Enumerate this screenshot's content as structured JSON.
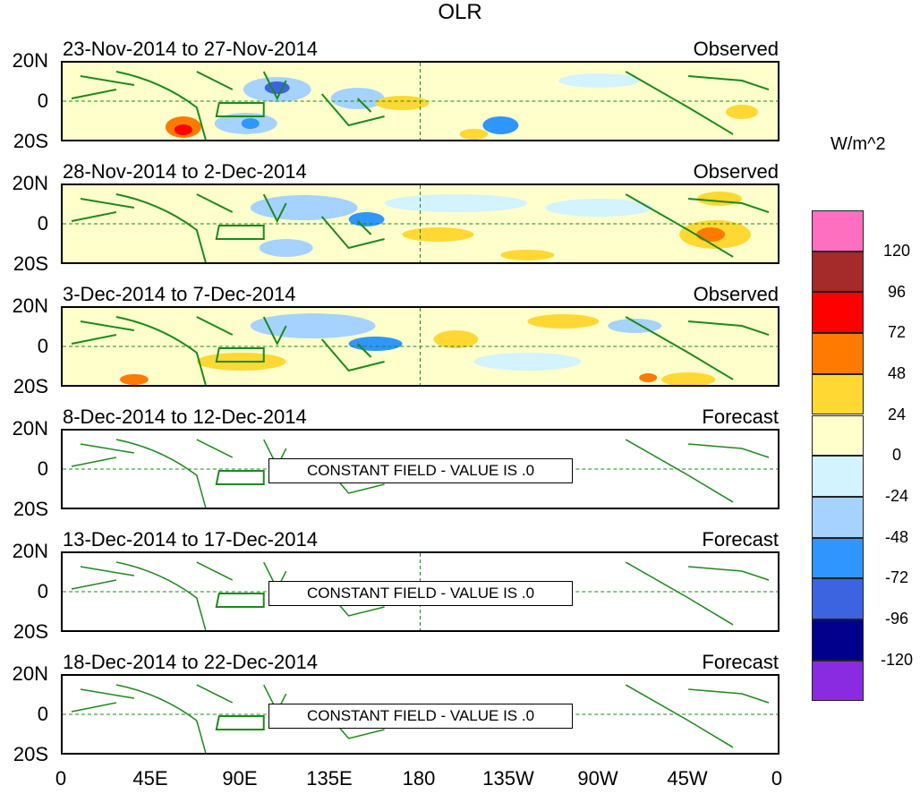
{
  "title": "OLR",
  "units": "W/m^2",
  "lat_labels": [
    "20N",
    "0",
    "20S"
  ],
  "lon_labels": [
    "0",
    "45E",
    "90E",
    "135E",
    "180",
    "135W",
    "90W",
    "45W",
    "0"
  ],
  "panels": [
    {
      "date": "23-Nov-2014 to 27-Nov-2014",
      "type": "Observed"
    },
    {
      "date": "28-Nov-2014 to 2-Dec-2014",
      "type": "Observed"
    },
    {
      "date": "3-Dec-2014 to 7-Dec-2014",
      "type": "Observed"
    },
    {
      "date": "8-Dec-2014 to 12-Dec-2014",
      "type": "Forecast",
      "note": "CONSTANT FIELD - VALUE IS .0"
    },
    {
      "date": "13-Dec-2014 to 17-Dec-2014",
      "type": "Forecast",
      "note": "CONSTANT FIELD - VALUE IS .0"
    },
    {
      "date": "18-Dec-2014 to 22-Dec-2014",
      "type": "Forecast",
      "note": "CONSTANT FIELD - VALUE IS .0"
    }
  ],
  "colorbar": {
    "colors": [
      "#ff6fbf",
      "#a52a2a",
      "#ff0000",
      "#ff7a00",
      "#ffd833",
      "#ffffcc",
      "#d2f3ff",
      "#a5d2ff",
      "#2f95ff",
      "#3c64e1",
      "#00008c",
      "#8a2be2"
    ],
    "labels": [
      "120",
      "96",
      "72",
      "48",
      "24",
      "0",
      "-24",
      "-48",
      "-72",
      "-96",
      "-120"
    ]
  },
  "colors": {
    "coast": "#1a8a1a",
    "equator": "#1a8a1a"
  }
}
